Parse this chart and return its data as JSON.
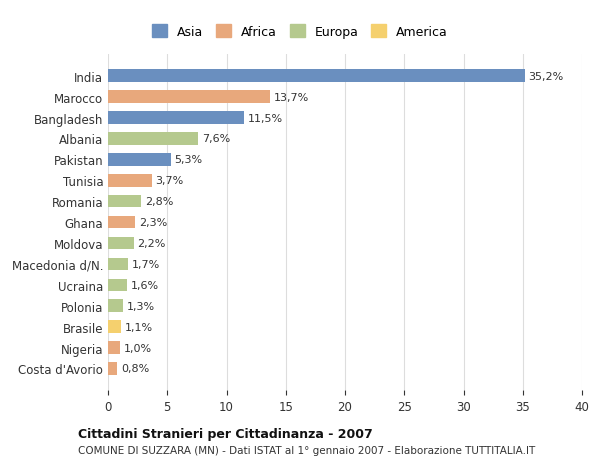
{
  "categories": [
    "India",
    "Marocco",
    "Bangladesh",
    "Albania",
    "Pakistan",
    "Tunisia",
    "Romania",
    "Ghana",
    "Moldova",
    "Macedonia d/N.",
    "Ucraina",
    "Polonia",
    "Brasile",
    "Nigeria",
    "Costa d'Avorio"
  ],
  "values": [
    35.2,
    13.7,
    11.5,
    7.6,
    5.3,
    3.7,
    2.8,
    2.3,
    2.2,
    1.7,
    1.6,
    1.3,
    1.1,
    1.0,
    0.8
  ],
  "labels": [
    "35,2%",
    "13,7%",
    "11,5%",
    "7,6%",
    "5,3%",
    "3,7%",
    "2,8%",
    "2,3%",
    "2,2%",
    "1,7%",
    "1,6%",
    "1,3%",
    "1,1%",
    "1,0%",
    "0,8%"
  ],
  "continents": [
    "Asia",
    "Africa",
    "Asia",
    "Europa",
    "Asia",
    "Africa",
    "Europa",
    "Africa",
    "Europa",
    "Europa",
    "Europa",
    "Europa",
    "America",
    "Africa",
    "Africa"
  ],
  "colors": {
    "Asia": "#6a8fbf",
    "Africa": "#e8a87c",
    "Europa": "#b5c98e",
    "America": "#f5d06e"
  },
  "legend_order": [
    "Asia",
    "Africa",
    "Europa",
    "America"
  ],
  "title": "Cittadini Stranieri per Cittadinanza - 2007",
  "subtitle": "COMUNE DI SUZZARA (MN) - Dati ISTAT al 1° gennaio 2007 - Elaborazione TUTTITALIA.IT",
  "xlim": [
    0,
    40
  ],
  "xticks": [
    0,
    5,
    10,
    15,
    20,
    25,
    30,
    35,
    40
  ],
  "background_color": "#ffffff",
  "grid_color": "#dddddd"
}
